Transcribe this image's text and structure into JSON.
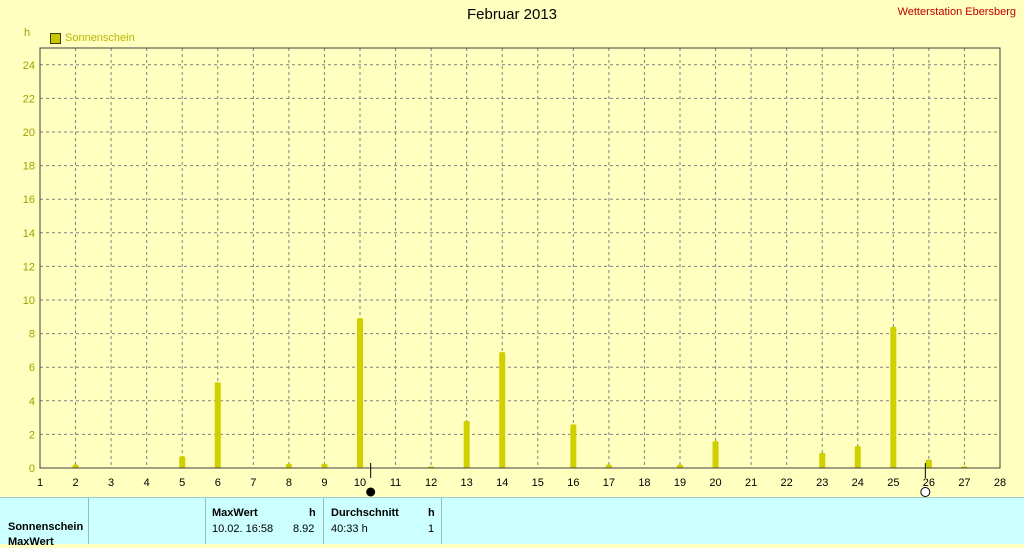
{
  "header": {
    "title": "Februar 2013",
    "station": "Wetterstation Ebersberg",
    "y_unit": "h"
  },
  "legend": {
    "label": "Sonnenschein"
  },
  "colors": {
    "background": "#ffffc0",
    "bar": "#d0d000",
    "grid": "#808080",
    "axis_labels": "#a0a000",
    "panel": "#ccffff",
    "station": "#c00000"
  },
  "chart_data": {
    "type": "bar",
    "series": [
      {
        "name": "Sonnenschein",
        "x": [
          2,
          5,
          6,
          8,
          9,
          10,
          12,
          13,
          14,
          16,
          17,
          19,
          20,
          23,
          24,
          25,
          26,
          27
        ],
        "values": [
          0.2,
          0.7,
          5.1,
          0.25,
          0.25,
          8.92,
          0.1,
          2.8,
          6.9,
          2.6,
          0.2,
          0.2,
          1.6,
          0.9,
          1.3,
          8.4,
          0.5,
          0.1
        ]
      }
    ],
    "title": "Februar 2013",
    "ylabel": "h",
    "xlim": [
      1,
      28
    ],
    "ylim": [
      0,
      25
    ],
    "x_ticks": [
      1,
      2,
      3,
      4,
      5,
      6,
      7,
      8,
      9,
      10,
      11,
      12,
      13,
      14,
      15,
      16,
      17,
      18,
      19,
      20,
      21,
      22,
      23,
      24,
      25,
      26,
      27,
      28
    ],
    "y_ticks": [
      0,
      2,
      4,
      6,
      8,
      10,
      12,
      14,
      16,
      18,
      20,
      22,
      24
    ],
    "grid": true,
    "legend_position": "top-left",
    "markers": [
      {
        "x": 10.3,
        "kind": "filled-circle"
      },
      {
        "x": 25.9,
        "kind": "open-circle"
      }
    ]
  },
  "panel": {
    "row_label": "Sonnenschein",
    "row_label_2": "MaxWert",
    "max_header": "MaxWert",
    "max_unit": "h",
    "max_time": "10.02.  16:58",
    "max_value": "8.92",
    "avg_header": "Durchschnitt",
    "avg_unit": "h",
    "avg_value": "40:33 h",
    "avg_count": "1"
  }
}
